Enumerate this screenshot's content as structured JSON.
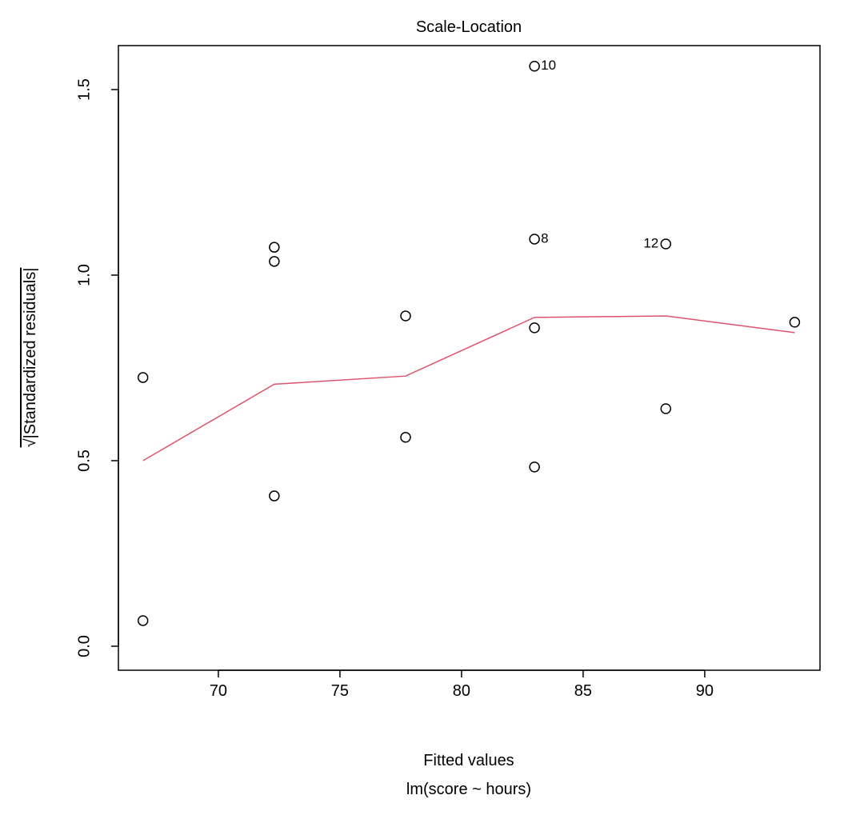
{
  "chart_data": {
    "type": "scatter",
    "title": "Scale-Location",
    "x_label": "Fitted values",
    "subtitle": "lm(score ~ hours)",
    "y_label": "√|Standardized residuals|",
    "x": [
      66.9,
      66.9,
      72.3,
      72.3,
      72.3,
      77.7,
      77.7,
      83.0,
      83.0,
      83.0,
      83.0,
      88.4,
      88.4,
      93.7
    ],
    "series": [
      {
        "color": "#000000",
        "values": [
          0.724,
          0.069,
          1.075,
          1.037,
          0.405,
          0.89,
          0.563,
          1.563,
          1.097,
          0.858,
          0.483,
          1.084,
          0.64,
          0.873
        ],
        "point_labels": [
          null,
          null,
          null,
          null,
          null,
          null,
          null,
          "10",
          "8",
          null,
          null,
          "12",
          null,
          null
        ]
      }
    ],
    "smooth": {
      "color": "#df536b",
      "x": [
        66.9,
        72.3,
        77.7,
        83.0,
        88.4,
        93.7
      ],
      "values": [
        0.5,
        0.706,
        0.728,
        0.886,
        0.89,
        0.845
      ]
    },
    "xlim": [
      65.89,
      94.74
    ],
    "ylim": [
      -0.0647,
      1.6185
    ],
    "xticks": [
      70,
      75,
      80,
      85,
      90
    ],
    "yticks": [
      {
        "value": 0,
        "label": "0.0"
      },
      0.5,
      {
        "value": 1,
        "label": "1.0"
      },
      1.5
    ]
  }
}
